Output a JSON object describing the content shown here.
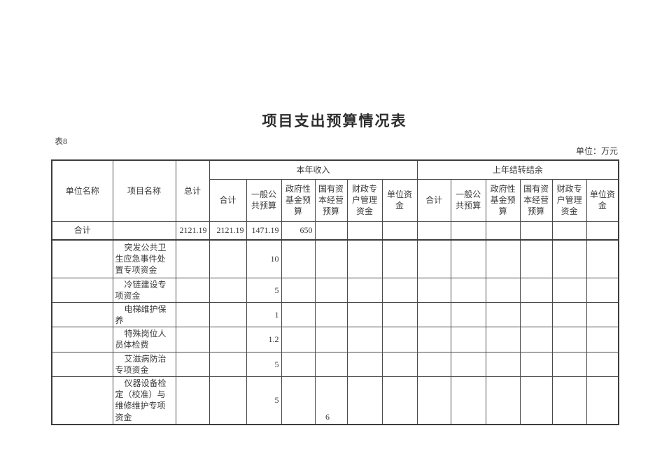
{
  "document": {
    "title": "项目支出预算情况表",
    "table_label": "表8",
    "unit_note": "单位：万元",
    "page_number": "6"
  },
  "colors": {
    "ink": "#3a3a3a",
    "grid_line": "#4a4a4a"
  },
  "table": {
    "header": {
      "col_unit_name": "单位名称",
      "col_project_name": "项目名称",
      "col_grand_total": "总计",
      "group_current_year": "本年收入",
      "group_prior_year": "上年结转结余",
      "sub_columns": [
        "合计",
        "一般公共预算",
        "政府性基金预算",
        "国有资本经营预算",
        "财政专户管理资金",
        "单位资金"
      ]
    },
    "rows": [
      {
        "unit_name": "合计",
        "project_name": "",
        "grand_total": "2121.19",
        "current_year": [
          "2121.19",
          "1471.19",
          "650",
          "",
          "",
          ""
        ],
        "prior_year": [
          "",
          "",
          "",
          "",
          "",
          ""
        ],
        "is_totals": true
      },
      {
        "unit_name": "",
        "project_name": "突发公共卫生应急事件处置专项资金",
        "grand_total": "",
        "current_year": [
          "",
          "10",
          "",
          "",
          "",
          ""
        ],
        "prior_year": [
          "",
          "",
          "",
          "",
          "",
          ""
        ],
        "is_totals": false
      },
      {
        "unit_name": "",
        "project_name": "冷链建设专项资金",
        "grand_total": "",
        "current_year": [
          "",
          "5",
          "",
          "",
          "",
          ""
        ],
        "prior_year": [
          "",
          "",
          "",
          "",
          "",
          ""
        ],
        "is_totals": false
      },
      {
        "unit_name": "",
        "project_name": "电梯维护保养",
        "grand_total": "",
        "current_year": [
          "",
          "1",
          "",
          "",
          "",
          ""
        ],
        "prior_year": [
          "",
          "",
          "",
          "",
          "",
          ""
        ],
        "is_totals": false
      },
      {
        "unit_name": "",
        "project_name": "特殊岗位人员体检费",
        "grand_total": "",
        "current_year": [
          "",
          "1.2",
          "",
          "",
          "",
          ""
        ],
        "prior_year": [
          "",
          "",
          "",
          "",
          "",
          ""
        ],
        "is_totals": false
      },
      {
        "unit_name": "",
        "project_name": "艾滋病防治专项资金",
        "grand_total": "",
        "current_year": [
          "",
          "5",
          "",
          "",
          "",
          ""
        ],
        "prior_year": [
          "",
          "",
          "",
          "",
          "",
          ""
        ],
        "is_totals": false
      },
      {
        "unit_name": "",
        "project_name": "仪器设备检定（校准）与维修维护专项资金",
        "grand_total": "",
        "current_year": [
          "",
          "5",
          "",
          "",
          "",
          ""
        ],
        "prior_year": [
          "",
          "",
          "",
          "",
          "",
          ""
        ],
        "is_totals": false
      }
    ]
  }
}
